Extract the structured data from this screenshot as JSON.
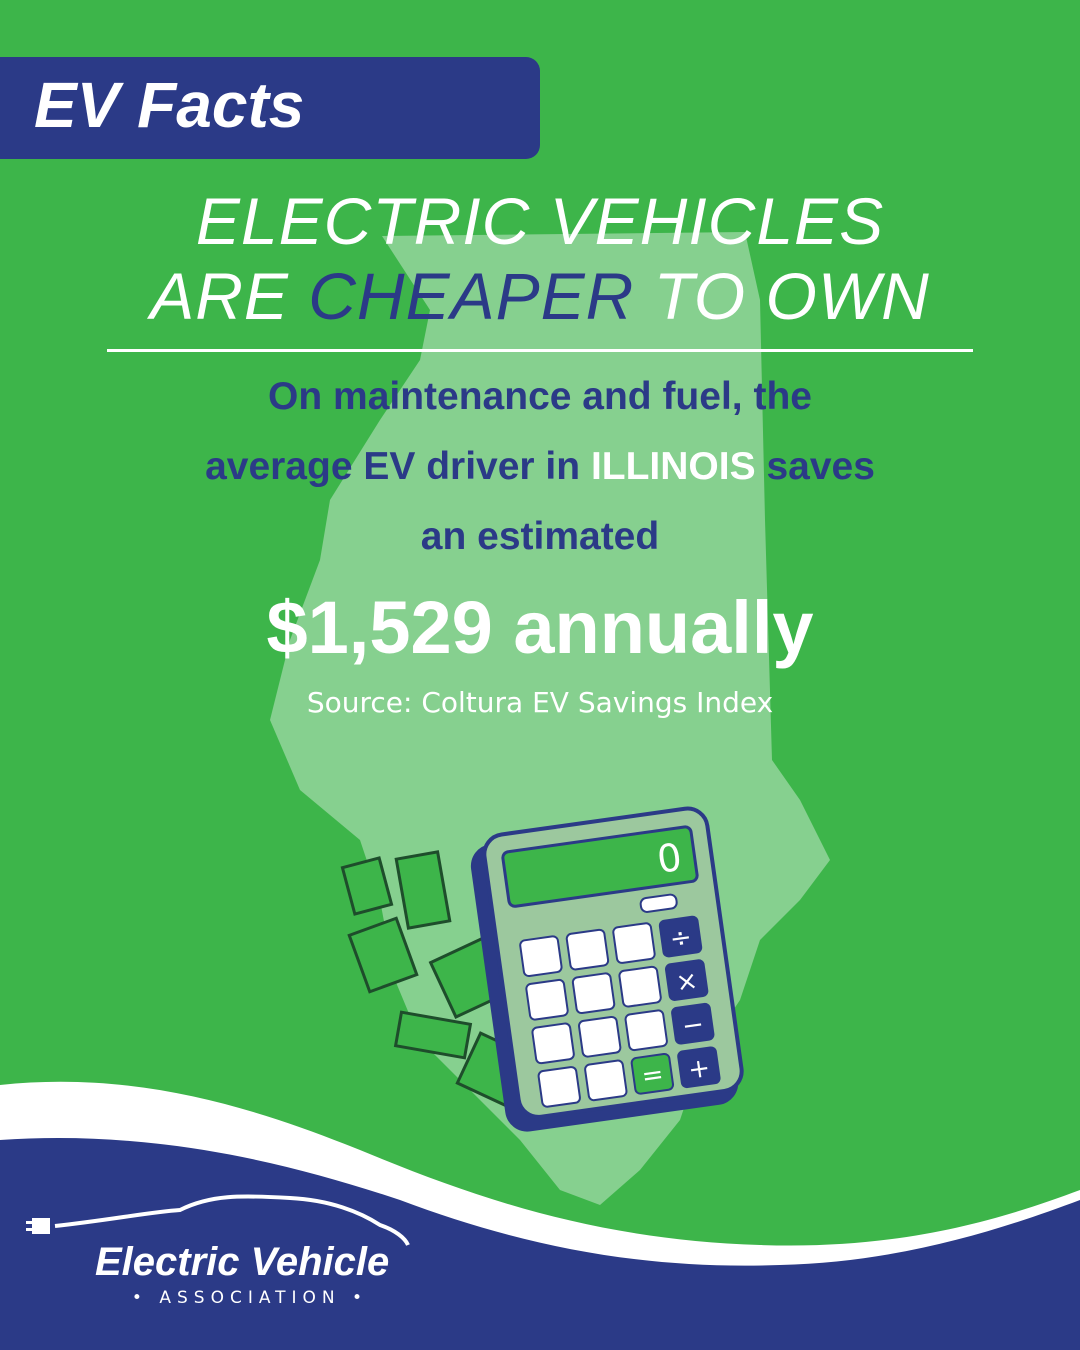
{
  "badge": "EV Facts",
  "headline": {
    "line1": "ELECTRIC VEHICLES",
    "line2_before": "ARE",
    "emphasis": "CHEAPER",
    "line2_after": "TO OWN"
  },
  "body": {
    "line1": "On maintenance and fuel, the",
    "line2_before": "average EV driver in",
    "highlight": "ILLINOIS",
    "line2_after": "saves",
    "line3": "an estimated"
  },
  "amount": "$1,529 annually",
  "source": "Source: Coltura EV Savings Index",
  "calculator": {
    "display": "0",
    "keys": [
      "÷",
      "×",
      "−",
      "=",
      "+"
    ]
  },
  "logo": {
    "name": "Electric Vehicle",
    "tagline": "• ASSOCIATION •"
  }
}
